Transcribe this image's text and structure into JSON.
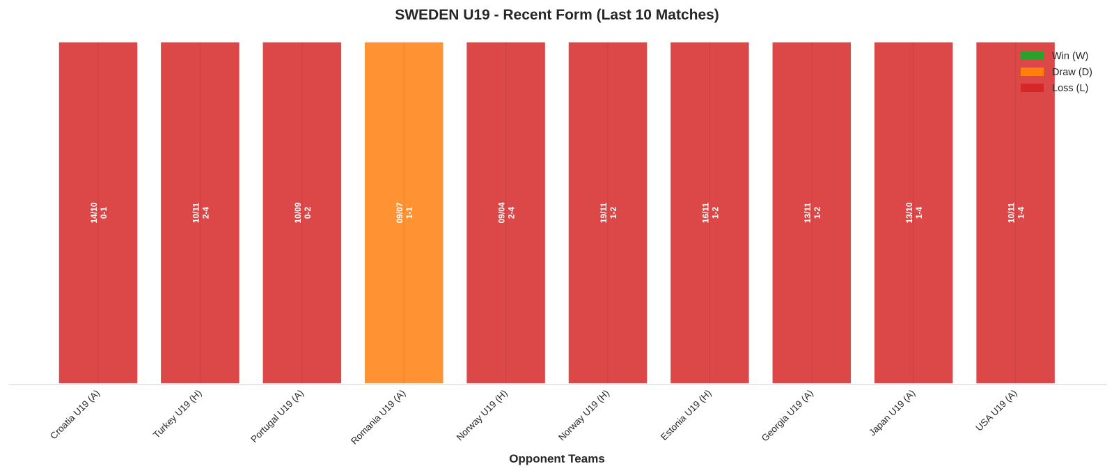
{
  "chart_data": {
    "type": "bar",
    "title": "SWEDEN U19 - Recent Form (Last 10 Matches)",
    "xlabel": "Opponent Teams",
    "ylabel": "",
    "ylim": [
      0,
      1
    ],
    "grid": false,
    "legend_placement": "top-right",
    "categories": [
      "Croatia U19 (A)",
      "Turkey U19 (H)",
      "Portugal U19 (A)",
      "Romania U19 (A)",
      "Norway U19 (H)",
      "Norway U19 (H)",
      "Estonia U19 (H)",
      "Georgia U19 (A)",
      "Japan U19 (A)",
      "USA U19 (A)"
    ],
    "values": [
      1,
      1,
      1,
      1,
      1,
      1,
      1,
      1,
      1,
      1
    ],
    "results": [
      "L",
      "L",
      "L",
      "D",
      "L",
      "L",
      "L",
      "L",
      "L",
      "L"
    ],
    "dates": [
      "14/10",
      "10/11",
      "10/09",
      "09/07",
      "09/04",
      "19/11",
      "16/11",
      "13/11",
      "13/10",
      "10/11"
    ],
    "scores": [
      "0-1",
      "2-4",
      "0-2",
      "1-1",
      "2-4",
      "1-2",
      "1-2",
      "1-2",
      "1-4",
      "1-4"
    ],
    "legend": [
      {
        "key": "W",
        "label": "Win (W)",
        "color": "#2ca02c"
      },
      {
        "key": "D",
        "label": "Draw (D)",
        "color": "#ff7f0e"
      },
      {
        "key": "L",
        "label": "Loss (L)",
        "color": "#d62728"
      }
    ]
  }
}
